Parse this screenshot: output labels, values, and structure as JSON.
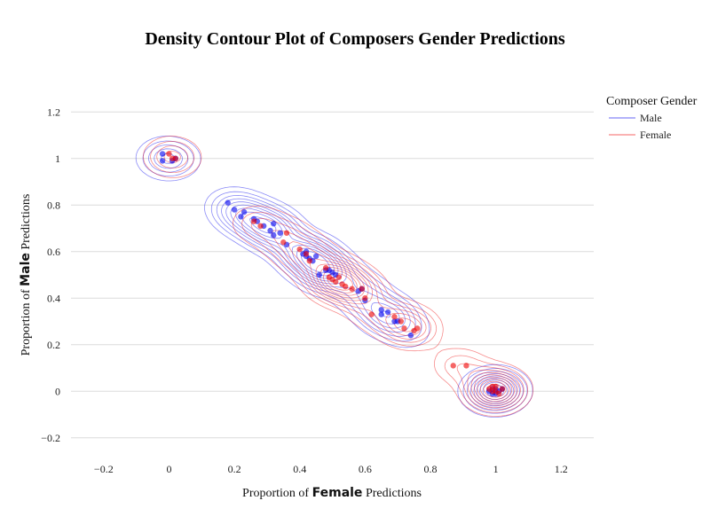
{
  "chart_data": {
    "type": "scatter",
    "title": "Density Contour Plot of Composers Gender Predictions",
    "xlabel": {
      "prefix": "Proportion of ",
      "bold": "Female",
      "suffix": " Predictions"
    },
    "ylabel": {
      "prefix": "Proportion of ",
      "bold": "Male",
      "suffix": " Predictions"
    },
    "xlim": [
      -0.3,
      1.3
    ],
    "ylim": [
      -0.3,
      1.3
    ],
    "xticks": [
      -0.2,
      0,
      0.2,
      0.4,
      0.6,
      0.8,
      1,
      1.2
    ],
    "yticks": [
      -0.2,
      0,
      0.2,
      0.4,
      0.6,
      0.8,
      1,
      1.2
    ],
    "xtick_labels": [
      "−0.2",
      "0",
      "0.2",
      "0.4",
      "0.6",
      "0.8",
      "1",
      "1.2"
    ],
    "ytick_labels": [
      "−0.2",
      "0",
      "0.2",
      "0.4",
      "0.6",
      "0.8",
      "1",
      "1.2"
    ],
    "grid": true,
    "legend": {
      "title": "Composer Gender",
      "placement": "top-right"
    },
    "series": [
      {
        "name": "Male",
        "color": "#0000ee",
        "points": [
          [
            -0.02,
            1.02
          ],
          [
            -0.02,
            0.99
          ],
          [
            0.01,
            0.99
          ],
          [
            0.02,
            1.0
          ],
          [
            0.18,
            0.81
          ],
          [
            0.2,
            0.78
          ],
          [
            0.22,
            0.75
          ],
          [
            0.23,
            0.77
          ],
          [
            0.26,
            0.74
          ],
          [
            0.27,
            0.73
          ],
          [
            0.29,
            0.71
          ],
          [
            0.31,
            0.69
          ],
          [
            0.32,
            0.67
          ],
          [
            0.32,
            0.72
          ],
          [
            0.34,
            0.68
          ],
          [
            0.36,
            0.63
          ],
          [
            0.41,
            0.59
          ],
          [
            0.42,
            0.58
          ],
          [
            0.42,
            0.6
          ],
          [
            0.43,
            0.57
          ],
          [
            0.44,
            0.56
          ],
          [
            0.45,
            0.58
          ],
          [
            0.46,
            0.5
          ],
          [
            0.48,
            0.52
          ],
          [
            0.49,
            0.52
          ],
          [
            0.5,
            0.51
          ],
          [
            0.51,
            0.5
          ],
          [
            0.58,
            0.43
          ],
          [
            0.59,
            0.44
          ],
          [
            0.6,
            0.39
          ],
          [
            0.65,
            0.35
          ],
          [
            0.65,
            0.33
          ],
          [
            0.67,
            0.34
          ],
          [
            0.69,
            0.3
          ],
          [
            0.7,
            0.3
          ],
          [
            0.74,
            0.24
          ],
          [
            0.98,
            0.0
          ],
          [
            0.99,
            -0.01
          ],
          [
            1.0,
            0.01
          ],
          [
            1.01,
            0.0
          ],
          [
            0.99,
            0.01
          ],
          [
            1.02,
            0.01
          ],
          [
            1.0,
            -0.01
          ]
        ],
        "contour_centers": [
          [
            0.3,
            0.7
          ],
          [
            0.5,
            0.5
          ],
          [
            0.7,
            0.3
          ],
          [
            1.0,
            0.0
          ]
        ]
      },
      {
        "name": "Female",
        "color": "#ee0000",
        "points": [
          [
            0.0,
            1.02
          ],
          [
            0.01,
            1.0
          ],
          [
            0.02,
            1.0
          ],
          [
            0.26,
            0.73
          ],
          [
            0.28,
            0.71
          ],
          [
            0.35,
            0.64
          ],
          [
            0.36,
            0.68
          ],
          [
            0.4,
            0.61
          ],
          [
            0.42,
            0.59
          ],
          [
            0.43,
            0.56
          ],
          [
            0.48,
            0.53
          ],
          [
            0.49,
            0.49
          ],
          [
            0.5,
            0.48
          ],
          [
            0.51,
            0.47
          ],
          [
            0.52,
            0.49
          ],
          [
            0.53,
            0.46
          ],
          [
            0.54,
            0.45
          ],
          [
            0.56,
            0.44
          ],
          [
            0.59,
            0.44
          ],
          [
            0.6,
            0.4
          ],
          [
            0.62,
            0.33
          ],
          [
            0.69,
            0.32
          ],
          [
            0.71,
            0.3
          ],
          [
            0.72,
            0.27
          ],
          [
            0.75,
            0.26
          ],
          [
            0.76,
            0.27
          ],
          [
            0.87,
            0.11
          ],
          [
            0.91,
            0.11
          ],
          [
            0.98,
            0.01
          ],
          [
            0.99,
            0.0
          ],
          [
            1.0,
            0.02
          ],
          [
            1.01,
            -0.01
          ],
          [
            1.0,
            0.0
          ],
          [
            1.02,
            0.01
          ],
          [
            0.99,
            0.02
          ]
        ],
        "contour_centers": [
          [
            0.5,
            0.5
          ],
          [
            0.9,
            0.1
          ],
          [
            1.0,
            0.0
          ]
        ]
      }
    ]
  }
}
